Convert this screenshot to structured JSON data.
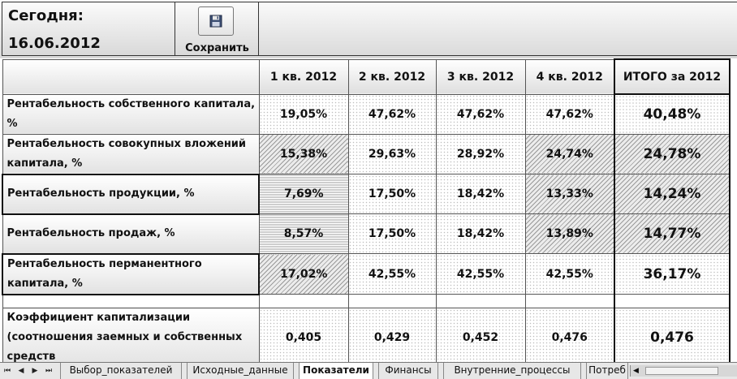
{
  "header": {
    "today_label": "Сегодня:",
    "date": "16.06.2012",
    "save_label": "Сохранить",
    "save_icon": "floppy-disk-icon"
  },
  "table": {
    "columns": [
      "1 кв. 2012",
      "2 кв. 2012",
      "3 кв. 2012",
      "4 кв. 2012",
      "ИТОГО за 2012"
    ],
    "rows": [
      {
        "label": "Рентабельность собственного капитала, %",
        "values": [
          "19,05%",
          "47,62%",
          "47,62%",
          "47,62%",
          "40,48%"
        ]
      },
      {
        "label": "Рентабельность совокупных вложений капитала, %",
        "values": [
          "15,38%",
          "29,63%",
          "28,92%",
          "24,74%",
          "24,78%"
        ]
      },
      {
        "label": "Рентабельность продукции, %",
        "values": [
          "7,69%",
          "17,50%",
          "18,42%",
          "13,33%",
          "14,24%"
        ]
      },
      {
        "label": "Рентабельность продаж, %",
        "values": [
          "8,57%",
          "17,50%",
          "18,42%",
          "13,89%",
          "14,77%"
        ]
      },
      {
        "label": "Рентабельность перманентного капитала, %",
        "values": [
          "17,02%",
          "42,55%",
          "42,55%",
          "42,55%",
          "36,17%"
        ]
      },
      {
        "label": "Коэффициент капитализации (соотношения заемных и собственных средств",
        "values": [
          "0,405",
          "0,429",
          "0,452",
          "0,476",
          "0,476"
        ]
      }
    ]
  },
  "tabs": [
    {
      "label": "Выбор_показателей",
      "active": false
    },
    {
      "label": "Исходные_данные",
      "active": false
    },
    {
      "label": "Показатели",
      "active": true
    },
    {
      "label": "Финансы",
      "active": false
    },
    {
      "label": "Внутренние_процессы",
      "active": false
    },
    {
      "label": "Потреб",
      "active": false
    }
  ],
  "nav": {
    "first": "⏮",
    "prev": "◀",
    "next": "▶",
    "last": "⏭"
  }
}
